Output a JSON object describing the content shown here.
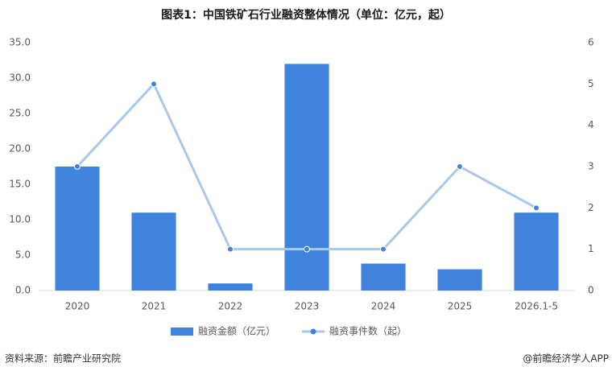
{
  "chart_data": {
    "type": "bar_line",
    "title": "图表1：中国铁矿石行业融资整体情况（单位：亿元，起）",
    "categories": [
      "2020",
      "2021",
      "2022",
      "2023",
      "2024",
      "2025",
      "2026.1-5"
    ],
    "series": [
      {
        "name": "融资金额（亿元）",
        "type": "bar",
        "color": "#3f83dd",
        "values": [
          17.5,
          11,
          1,
          32,
          3.8,
          3,
          11
        ]
      },
      {
        "name": "融资事件数（起）",
        "type": "line",
        "axis": "y2",
        "color": "#a9c8ea",
        "marker_color": "#3f83dd",
        "values": [
          3,
          5,
          1,
          1,
          1,
          3,
          2
        ]
      }
    ],
    "ylim": [
      0,
      35
    ],
    "yticks": [
      {
        "value": 0,
        "label": "0.0"
      },
      {
        "value": 5,
        "label": "5.0"
      },
      {
        "value": 10,
        "label": "10.0"
      },
      {
        "value": 15,
        "label": "15.0"
      },
      {
        "value": 20,
        "label": "20.0"
      },
      {
        "value": 25,
        "label": "25.0"
      },
      {
        "value": 30,
        "label": "30.0"
      },
      {
        "value": 35,
        "label": "35.0"
      }
    ],
    "y2lim": [
      0,
      6
    ],
    "y2ticks": [
      0,
      1,
      2,
      3,
      4,
      5,
      6
    ],
    "source": "资料来源：前瞻产业研究院",
    "credit": "@前瞻经济学人APP"
  }
}
